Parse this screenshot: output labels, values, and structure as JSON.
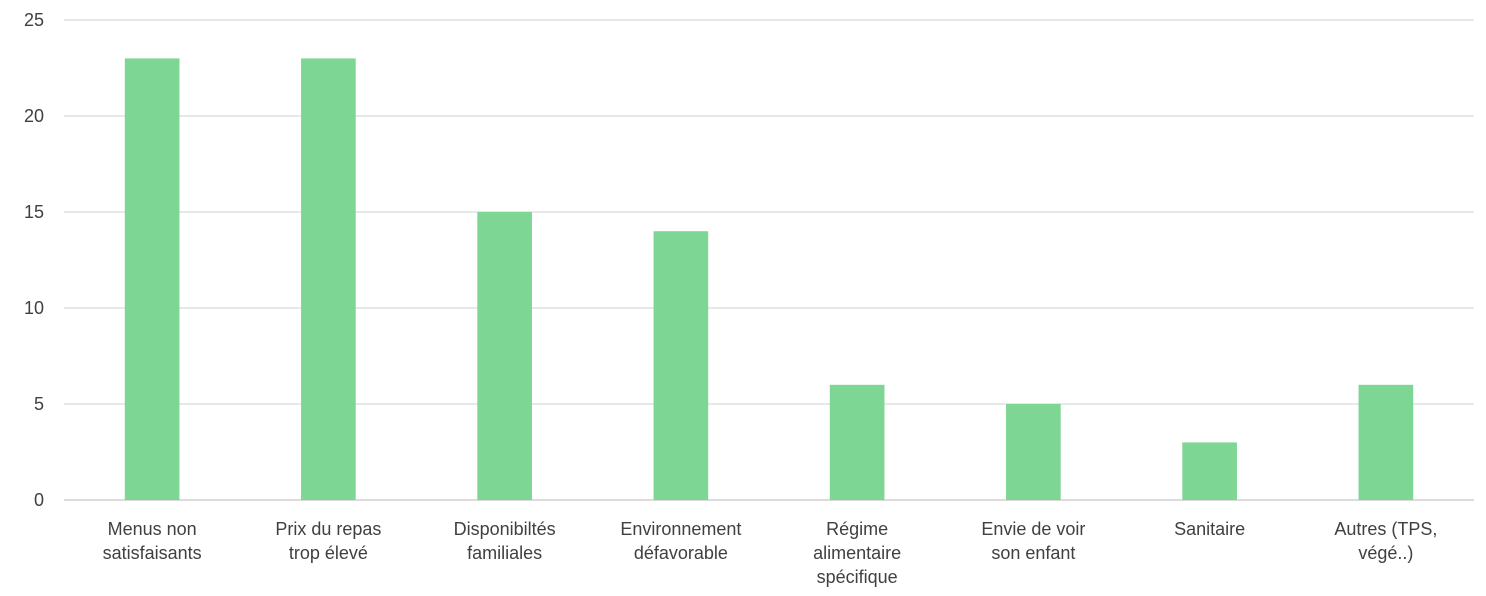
{
  "chart_data": {
    "type": "bar",
    "title": "",
    "xlabel": "",
    "ylabel": "",
    "categories": [
      [
        "Menus non",
        "satisfaisants"
      ],
      [
        "Prix du repas",
        "trop élevé"
      ],
      [
        "Disponibiltés",
        "familiales"
      ],
      [
        "Environnement",
        "défavorable"
      ],
      [
        "Régime",
        "alimentaire",
        "spécifique"
      ],
      [
        "Envie de voir",
        "son enfant"
      ],
      [
        "Sanitaire"
      ],
      [
        "Autres (TPS,",
        "végé..)"
      ]
    ],
    "values": [
      23,
      23,
      15,
      14,
      6,
      5,
      3,
      6
    ],
    "ylim": [
      0,
      25
    ],
    "yticks": [
      0,
      5,
      10,
      15,
      20,
      25
    ],
    "grid": true,
    "legend": "none",
    "bar_color": "#7dd694"
  }
}
